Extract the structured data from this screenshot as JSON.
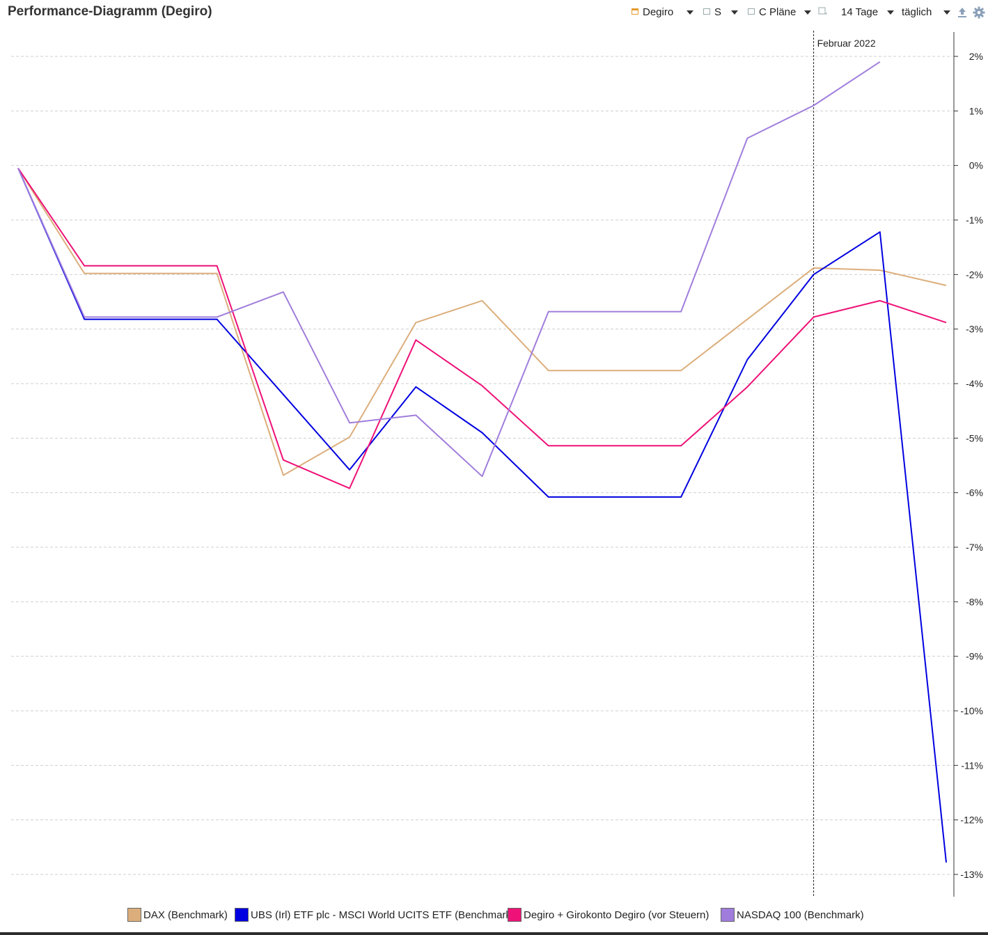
{
  "header": {
    "title": "Performance-Diagramm (Degiro)"
  },
  "toolbar": {
    "account_label": "Degiro",
    "s_label": "S",
    "plans_label": "C Pläne",
    "period_label": "14 Tage",
    "interval_label": "täglich",
    "icons": [
      "checkbox-icon",
      "dropdown-caret-icon",
      "upload-icon",
      "gear-icon"
    ]
  },
  "chart_data": {
    "type": "line",
    "title": "Performance-Diagramm (Degiro)",
    "x": [
      1,
      2,
      3,
      4,
      5,
      6,
      7,
      8,
      9,
      10,
      11,
      12,
      13,
      14,
      15
    ],
    "ylim": [
      -13,
      2
    ],
    "y_ticks": [
      "2%",
      "1%",
      "0%",
      "-1%",
      "-2%",
      "-3%",
      "-4%",
      "-5%",
      "-6%",
      "-7%",
      "-8%",
      "-9%",
      "-10%",
      "-11%",
      "-12%",
      "-13%"
    ],
    "y_axis_position": "right",
    "grid": "horizontal dashed",
    "legend_position": "bottom",
    "annotation": {
      "label": "Februar 2022",
      "at_x": 13
    },
    "series": [
      {
        "name": "DAX (Benchmark)",
        "color": "#dcae7c",
        "values": [
          -0.05,
          -1.98,
          -1.98,
          -1.98,
          -5.68,
          -4.98,
          -2.88,
          -2.48,
          -3.76,
          -3.76,
          -3.76,
          -2.82,
          -1.88,
          -1.92,
          -2.2
        ]
      },
      {
        "name": "UBS (Irl) ETF plc - MSCI World UCITS ETF (Benchmark)",
        "color": "#0000e0",
        "values": [
          -0.05,
          -2.82,
          -2.82,
          -2.82,
          -4.2,
          -5.58,
          -4.06,
          -4.9,
          -6.08,
          -6.08,
          -6.08,
          -3.56,
          -2.0,
          -1.22,
          -12.78
        ]
      },
      {
        "name": "Degiro + Girokonto Degiro (vor Steuern)",
        "color": "#ee1177",
        "values": [
          -0.05,
          -1.84,
          -1.84,
          -1.84,
          -5.4,
          -5.92,
          -3.2,
          -4.04,
          -5.14,
          -5.14,
          -5.14,
          -4.06,
          -2.78,
          -2.48,
          -2.88
        ]
      },
      {
        "name": "NASDAQ 100 (Benchmark)",
        "color": "#a07ddc",
        "values": [
          -0.05,
          -2.78,
          -2.78,
          -2.78,
          -2.32,
          -4.72,
          -4.58,
          -5.7,
          -2.68,
          -2.68,
          -2.68,
          0.5,
          1.1,
          1.9,
          null
        ]
      }
    ]
  }
}
